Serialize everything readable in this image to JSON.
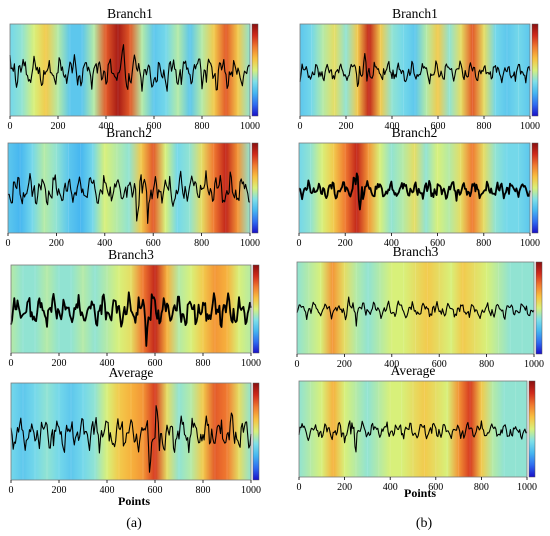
{
  "figure": {
    "axis_label": "Points",
    "caption_a": "(a)",
    "caption_b": "(b)"
  },
  "colormap": [
    "#1a10c8",
    "#2f6cf0",
    "#46b6f0",
    "#7fe0e8",
    "#d8f07a",
    "#f8c040",
    "#f07a30",
    "#d02a1c",
    "#8a1010"
  ],
  "chart_data": [
    {
      "type": "heatmap",
      "panel": "a1",
      "title": "Branch1",
      "xticks": [
        0,
        200,
        400,
        600,
        800,
        1000
      ],
      "xlim": [
        0,
        1000
      ],
      "heat_x": [
        0,
        50,
        100,
        150,
        200,
        250,
        300,
        350,
        400,
        450,
        500,
        550,
        600,
        650,
        700,
        750,
        800,
        850,
        900,
        950,
        1000
      ],
      "heat_v": [
        0.35,
        0.4,
        0.5,
        0.6,
        0.45,
        0.3,
        0.3,
        0.45,
        0.8,
        0.95,
        0.8,
        0.45,
        0.3,
        0.35,
        0.45,
        0.3,
        0.45,
        0.6,
        0.8,
        0.6,
        0.4
      ],
      "signal": {
        "amp": 1.0,
        "seed": 3,
        "burst": [
          450,
          500
        ],
        "style": "thin"
      }
    },
    {
      "type": "heatmap",
      "panel": "a2",
      "title": "Branch2",
      "xticks": [
        0,
        200,
        400,
        600,
        800,
        1000
      ],
      "xlim": [
        0,
        1000
      ],
      "heat_x": [
        0,
        50,
        100,
        150,
        200,
        250,
        300,
        350,
        400,
        450,
        500,
        550,
        600,
        650,
        700,
        750,
        800,
        850,
        900,
        950,
        1000
      ],
      "heat_v": [
        0.3,
        0.25,
        0.35,
        0.45,
        0.4,
        0.3,
        0.25,
        0.35,
        0.5,
        0.45,
        0.4,
        0.6,
        0.8,
        0.5,
        0.35,
        0.4,
        0.55,
        0.75,
        0.9,
        0.7,
        0.4
      ],
      "signal": {
        "amp": 1.0,
        "seed": 7,
        "burst": [
          520,
          580
        ],
        "style": "thin"
      }
    },
    {
      "type": "heatmap",
      "panel": "a3",
      "title": "Branch3",
      "xticks": [
        0,
        200,
        400,
        600,
        800,
        1000
      ],
      "xlim": [
        0,
        1000
      ],
      "heat_x": [
        0,
        50,
        100,
        150,
        200,
        250,
        300,
        350,
        400,
        450,
        500,
        550,
        600,
        650,
        700,
        750,
        800,
        850,
        900,
        950,
        1000
      ],
      "heat_v": [
        0.45,
        0.4,
        0.4,
        0.45,
        0.4,
        0.4,
        0.45,
        0.4,
        0.45,
        0.5,
        0.55,
        0.75,
        0.9,
        0.65,
        0.45,
        0.5,
        0.6,
        0.7,
        0.65,
        0.5,
        0.45
      ],
      "signal": {
        "amp": 1.0,
        "seed": 11,
        "burst": [
          560,
          620
        ],
        "style": "thick"
      }
    },
    {
      "type": "heatmap",
      "panel": "a4",
      "title": "Average",
      "xticks": [
        0,
        200,
        400,
        600,
        800,
        1000
      ],
      "xlim": [
        0,
        1000
      ],
      "heat_x": [
        0,
        50,
        100,
        150,
        200,
        250,
        300,
        350,
        400,
        450,
        500,
        550,
        600,
        650,
        700,
        750,
        800,
        850,
        900,
        950,
        1000
      ],
      "heat_v": [
        0.35,
        0.3,
        0.35,
        0.4,
        0.35,
        0.3,
        0.35,
        0.4,
        0.5,
        0.6,
        0.65,
        0.7,
        0.85,
        0.55,
        0.4,
        0.45,
        0.6,
        0.8,
        0.75,
        0.55,
        0.4
      ],
      "signal": {
        "amp": 1.0,
        "seed": 13,
        "burst": [
          560,
          620
        ],
        "style": "thin"
      }
    },
    {
      "type": "heatmap",
      "panel": "b1",
      "title": "Branch1",
      "xticks": [
        0,
        200,
        400,
        600,
        800,
        1000
      ],
      "xlim": [
        0,
        1000
      ],
      "heat_x": [
        0,
        50,
        100,
        150,
        200,
        250,
        300,
        350,
        400,
        450,
        500,
        550,
        600,
        650,
        700,
        750,
        800,
        850,
        900,
        950,
        1000
      ],
      "heat_v": [
        0.3,
        0.35,
        0.45,
        0.55,
        0.4,
        0.6,
        0.9,
        0.6,
        0.4,
        0.35,
        0.3,
        0.45,
        0.6,
        0.4,
        0.55,
        0.8,
        0.55,
        0.35,
        0.3,
        0.35,
        0.3
      ],
      "signal": {
        "amp": 0.6,
        "seed": 17,
        "burst": [
          250,
          300
        ],
        "style": "thin"
      }
    },
    {
      "type": "heatmap",
      "panel": "b2",
      "title": "Branch2",
      "xticks": [
        0,
        200,
        400,
        600,
        800,
        1000
      ],
      "xlim": [
        0,
        1000
      ],
      "heat_x": [
        0,
        50,
        100,
        150,
        200,
        250,
        300,
        350,
        400,
        450,
        500,
        550,
        600,
        650,
        700,
        750,
        800,
        850,
        900,
        950,
        1000
      ],
      "heat_v": [
        0.35,
        0.4,
        0.5,
        0.6,
        0.75,
        0.9,
        0.7,
        0.5,
        0.4,
        0.45,
        0.55,
        0.4,
        0.5,
        0.45,
        0.55,
        0.75,
        0.55,
        0.4,
        0.35,
        0.35,
        0.3
      ],
      "signal": {
        "amp": 0.6,
        "seed": 19,
        "burst": [
          230,
          280
        ],
        "style": "thick"
      }
    },
    {
      "type": "heatmap",
      "panel": "b3",
      "title": "Branch3",
      "xticks": [
        0,
        200,
        400,
        600,
        800,
        1000
      ],
      "xlim": [
        0,
        1000
      ],
      "heat_x": [
        0,
        50,
        100,
        150,
        200,
        250,
        300,
        350,
        400,
        450,
        500,
        550,
        600,
        650,
        700,
        750,
        800,
        850,
        900,
        950,
        1000
      ],
      "heat_v": [
        0.4,
        0.45,
        0.5,
        0.7,
        0.55,
        0.45,
        0.4,
        0.45,
        0.5,
        0.5,
        0.55,
        0.6,
        0.55,
        0.5,
        0.6,
        0.55,
        0.5,
        0.45,
        0.4,
        0.4,
        0.4
      ],
      "signal": {
        "amp": 0.5,
        "seed": 23,
        "burst": [
          200,
          250
        ],
        "style": "thin"
      }
    },
    {
      "type": "heatmap",
      "panel": "b4",
      "title": "Average",
      "xticks": [
        0,
        200,
        400,
        600,
        800,
        1000
      ],
      "xlim": [
        0,
        1000
      ],
      "heat_x": [
        0,
        50,
        100,
        150,
        200,
        250,
        300,
        350,
        400,
        450,
        500,
        550,
        600,
        650,
        700,
        750,
        800,
        850,
        900,
        950,
        1000
      ],
      "heat_v": [
        0.4,
        0.45,
        0.5,
        0.65,
        0.5,
        0.45,
        0.4,
        0.45,
        0.5,
        0.5,
        0.55,
        0.6,
        0.55,
        0.5,
        0.7,
        0.85,
        0.6,
        0.45,
        0.4,
        0.4,
        0.4
      ],
      "signal": {
        "amp": 0.5,
        "seed": 29,
        "burst": [
          200,
          250
        ],
        "style": "thin"
      }
    }
  ]
}
